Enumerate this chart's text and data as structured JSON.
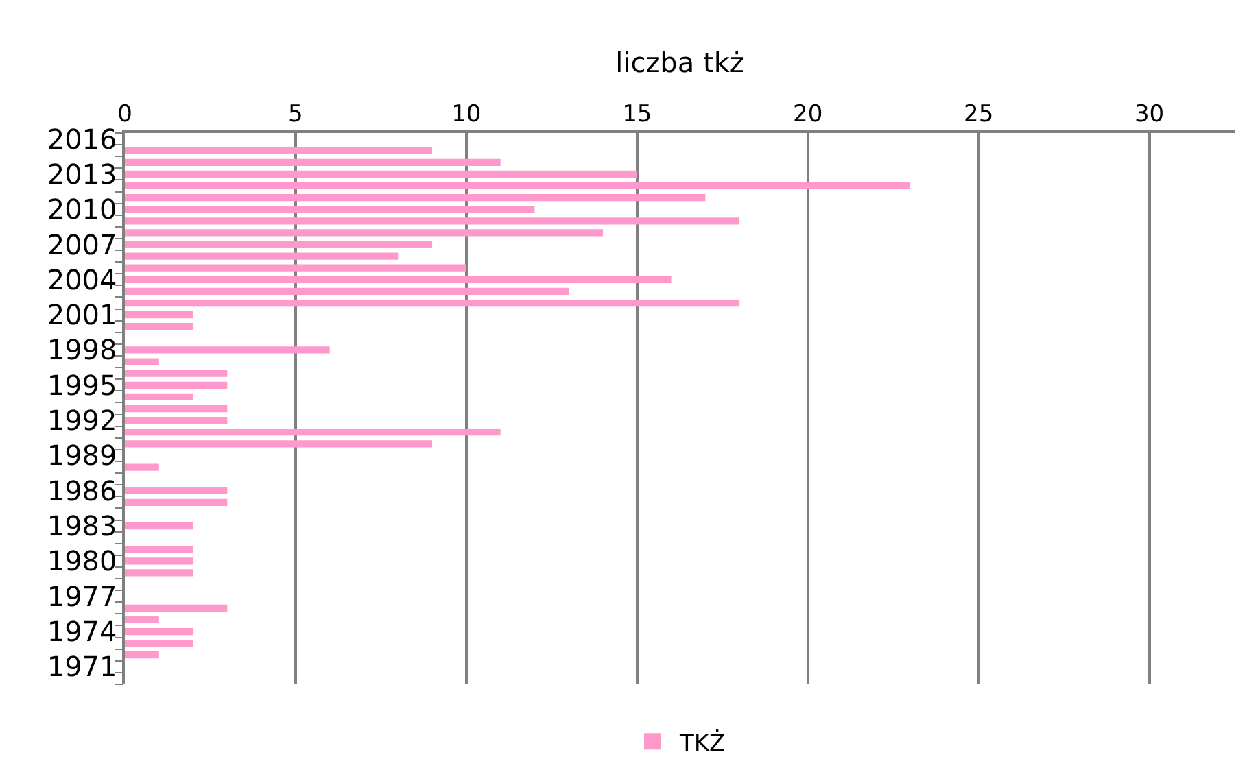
{
  "chart_data": {
    "type": "bar",
    "orientation": "horizontal",
    "xlabel": "liczba tkż",
    "categories": [
      "2016",
      null,
      null,
      "2013",
      null,
      null,
      "2010",
      null,
      null,
      "2007",
      null,
      null,
      "2004",
      null,
      null,
      "2001",
      null,
      null,
      "1998",
      null,
      null,
      "1995",
      null,
      null,
      "1992",
      null,
      null,
      "1989",
      null,
      null,
      "1986",
      null,
      null,
      "1983",
      null,
      null,
      "1980",
      null,
      null,
      "1977",
      null,
      null,
      "1974",
      null,
      null,
      "1971",
      null
    ],
    "series": [
      {
        "name": "TKŻ",
        "color": "#ff99cc",
        "values": [
          null,
          9,
          11,
          15,
          23,
          17,
          12,
          18,
          14,
          9,
          8,
          10,
          16,
          13,
          18,
          2,
          2,
          null,
          6,
          1,
          3,
          3,
          2,
          3,
          3,
          11,
          9,
          null,
          1,
          null,
          3,
          3,
          null,
          2,
          null,
          2,
          2,
          2,
          null,
          null,
          3,
          1,
          2,
          2,
          1,
          null,
          null
        ]
      }
    ],
    "xlim": [
      0,
      32.5
    ],
    "xticks": [
      0,
      5,
      10,
      15,
      20,
      25,
      30
    ],
    "grid": "x",
    "legend": "bottom"
  }
}
